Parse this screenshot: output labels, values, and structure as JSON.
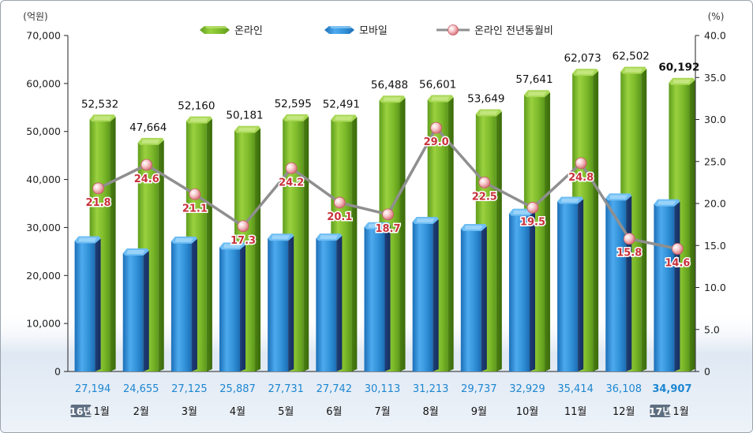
{
  "chart_data": {
    "type": "bar",
    "categories": [
      "1월",
      "2월",
      "3월",
      "4월",
      "5월",
      "6월",
      "7월",
      "8월",
      "9월",
      "10월",
      "11월",
      "12월",
      "1월"
    ],
    "year_tags": {
      "first": "16년",
      "last": "17년"
    },
    "left_unit": "(억원)",
    "right_unit": "(%)",
    "ylim": [
      0,
      70000
    ],
    "y2lim": [
      0,
      40
    ],
    "yticks": [
      "0",
      "10,000",
      "20,000",
      "30,000",
      "40,000",
      "50,000",
      "60,000",
      "70,000"
    ],
    "y2ticks": [
      "0",
      "5.0",
      "10.0",
      "15.0",
      "20.0",
      "25.0",
      "30.0",
      "35.0",
      "40.0"
    ],
    "legend": [
      "온라인",
      "모바일",
      "온라인 전년동월비"
    ],
    "series": [
      {
        "name": "온라인",
        "values": [
          52532,
          47664,
          52160,
          50181,
          52595,
          52491,
          56488,
          56601,
          53649,
          57641,
          62073,
          62502,
          60192
        ],
        "labels": [
          "52,532",
          "47,664",
          "52,160",
          "50,181",
          "52,595",
          "52,491",
          "56,488",
          "56,601",
          "53,649",
          "57,641",
          "62,073",
          "62,502",
          "60,192"
        ]
      },
      {
        "name": "모바일",
        "values": [
          27194,
          24655,
          27125,
          25887,
          27731,
          27742,
          30113,
          31213,
          29737,
          32929,
          35414,
          36108,
          34907
        ],
        "labels": [
          "27,194",
          "24,655",
          "27,125",
          "25,887",
          "27,731",
          "27,742",
          "30,113",
          "31,213",
          "29,737",
          "32,929",
          "35,414",
          "36,108",
          "34,907"
        ]
      },
      {
        "name": "온라인 전년동월비",
        "values": [
          21.8,
          24.6,
          21.1,
          17.3,
          24.2,
          20.1,
          18.7,
          29.0,
          22.5,
          19.5,
          24.8,
          15.8,
          14.6
        ],
        "labels": [
          "21.8",
          "24.6",
          "21.1",
          "17.3",
          "24.2",
          "20.1",
          "18.7",
          "29.0",
          "22.5",
          "19.5",
          "24.8",
          "15.8",
          "14.6"
        ]
      }
    ],
    "colors": {
      "online": "#7dbb2e",
      "mobile": "#2f8fd6",
      "yoy_line": "#8f8f8f",
      "yoy_label": "#c8313b",
      "mobile_label": "#1d86d1",
      "year_tag_bg": "#5f6f82"
    }
  }
}
